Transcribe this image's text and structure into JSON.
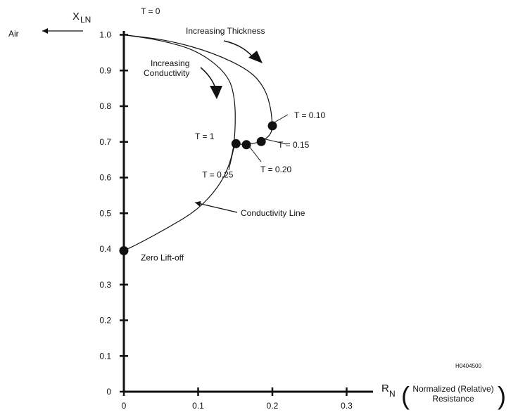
{
  "chart_data": {
    "type": "line",
    "xlim": [
      0,
      0.33
    ],
    "ylim": [
      0,
      1.05
    ],
    "x_ticks": [
      {
        "value": 0,
        "label": "0"
      },
      {
        "value": 0.1,
        "label": "0.1"
      },
      {
        "value": 0.2,
        "label": "0.2"
      },
      {
        "value": 0.3,
        "label": "0.3"
      }
    ],
    "y_ticks": [
      {
        "value": 0,
        "label": "0"
      },
      {
        "value": 0.1,
        "label": "0.1"
      },
      {
        "value": 0.2,
        "label": "0.2"
      },
      {
        "value": 0.3,
        "label": "0.3"
      },
      {
        "value": 0.4,
        "label": "0.4"
      },
      {
        "value": 0.5,
        "label": "0.5"
      },
      {
        "value": 0.6,
        "label": "0.6"
      },
      {
        "value": 0.7,
        "label": "0.7"
      },
      {
        "value": 0.8,
        "label": "0.8"
      },
      {
        "value": 0.9,
        "label": "0.9"
      },
      {
        "value": 1.0,
        "label": "1.0"
      }
    ],
    "y_axis_label": {
      "main": "X",
      "sub": "LN"
    },
    "x_axis_label": {
      "main": "R",
      "sub": "N",
      "paren_line1": "Normalized (Relative)",
      "paren_line2": "Resistance"
    },
    "series": [
      {
        "points": [
          [
            0,
            1.0
          ],
          [
            0.06,
            0.985
          ],
          [
            0.12,
            0.95
          ],
          [
            0.17,
            0.9
          ],
          [
            0.19,
            0.85
          ],
          [
            0.198,
            0.795
          ],
          [
            0.2,
            0.745
          ]
        ]
      },
      {
        "points": [
          [
            0.2,
            0.745
          ],
          [
            0.198,
            0.72
          ],
          [
            0.185,
            0.7
          ],
          [
            0.165,
            0.692
          ],
          [
            0.15,
            0.695
          ]
        ]
      },
      {
        "points": [
          [
            0,
            1.0
          ],
          [
            0.05,
            0.985
          ],
          [
            0.1,
            0.955
          ],
          [
            0.14,
            0.89
          ],
          [
            0.15,
            0.82
          ],
          [
            0.15,
            0.72
          ],
          [
            0.145,
            0.65
          ],
          [
            0.13,
            0.58
          ],
          [
            0.1,
            0.51
          ],
          [
            0.06,
            0.46
          ],
          [
            0.02,
            0.415
          ],
          [
            0,
            0.395
          ]
        ]
      }
    ],
    "markers": [
      {
        "x": 0.2,
        "y": 0.745,
        "label": "T = 0.10"
      },
      {
        "x": 0.185,
        "y": 0.701,
        "label": "T = 0.15"
      },
      {
        "x": 0.165,
        "y": 0.692,
        "label": "T = 0.20"
      },
      {
        "x": 0.151,
        "y": 0.695,
        "label": "T = 0.25"
      },
      {
        "x": 0,
        "y": 0.395,
        "label": "Zero Lift-off"
      }
    ],
    "annotations": {
      "t0": "T = 0",
      "t1": "T = 1",
      "air": "Air",
      "increasing_thickness": "Increasing Thickness",
      "increasing_conductivity_line1": "Increasing",
      "increasing_conductivity_line2": "Conductivity",
      "conductivity_line": "Conductivity Line",
      "figure_id": "H0404500"
    }
  }
}
